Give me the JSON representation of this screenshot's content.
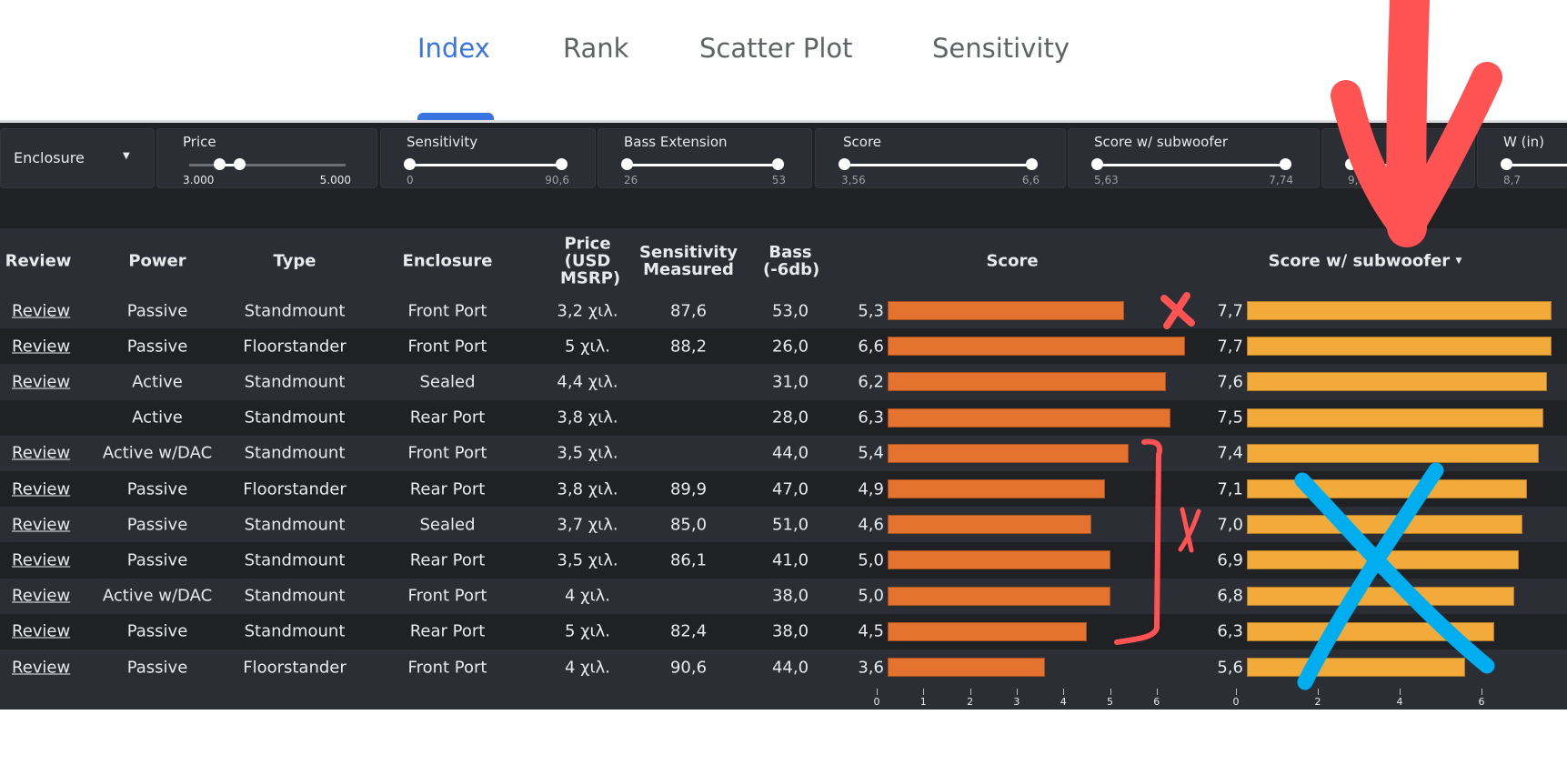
{
  "tabs": [
    {
      "label": "Index",
      "active": true
    },
    {
      "label": "Rank"
    },
    {
      "label": "Scatter Plot"
    },
    {
      "label": "Sensitivity"
    }
  ],
  "filters": {
    "enclosure": {
      "label": "Enclosure",
      "icon": "caret-down-icon"
    },
    "price": {
      "label": "Price",
      "min": "3.000",
      "max": "5.000",
      "selected_low": 3200,
      "selected_high": 3500,
      "range": [
        2000,
        5000
      ]
    },
    "sensitivity": {
      "label": "Sensitivity",
      "min": "0",
      "max": "90,6"
    },
    "bass": {
      "label": "Bass Extension",
      "min": "26",
      "max": "53"
    },
    "score": {
      "label": "Score",
      "min": "3,56",
      "max": "6,6"
    },
    "score_sub": {
      "label": "Score w/ subwoofer",
      "min": "5,63",
      "max": "7,74"
    },
    "hidden": {
      "min": "9,96"
    },
    "w": {
      "label": "W (in)",
      "min": "8,7"
    }
  },
  "table": {
    "headers": {
      "review": "Review",
      "power": "Power",
      "type": "Type",
      "enclosure": "Enclosure",
      "price": "Price (USD MSRP)",
      "sensitivity": "Sensitivity Measured",
      "bass": "Bass (-6db)",
      "score": "Score",
      "score_sub": "Score w/ subwoofer",
      "sort_icon": "caret-down-icon"
    },
    "rows": [
      {
        "review": "Review",
        "power": "Passive",
        "type": "Standmount",
        "enclosure": "Front Port",
        "price": "3,2 χιλ.",
        "sensitivity": "87,6",
        "bass": "53,0",
        "score": "5,3",
        "score_sub": "7,7"
      },
      {
        "review": "Review",
        "power": "Passive",
        "type": "Floorstander",
        "enclosure": "Front Port",
        "price": "5 χιλ.",
        "sensitivity": "88,2",
        "bass": "26,0",
        "score": "6,6",
        "score_sub": "7,7"
      },
      {
        "review": "Review",
        "power": "Active",
        "type": "Standmount",
        "enclosure": "Sealed",
        "price": "4,4 χιλ.",
        "sensitivity": "",
        "bass": "31,0",
        "score": "6,2",
        "score_sub": "7,6"
      },
      {
        "review": "",
        "power": "Active",
        "type": "Standmount",
        "enclosure": "Rear Port",
        "price": "3,8 χιλ.",
        "sensitivity": "",
        "bass": "28,0",
        "score": "6,3",
        "score_sub": "7,5"
      },
      {
        "review": "Review",
        "power": "Active w/DAC",
        "type": "Standmount",
        "enclosure": "Front Port",
        "price": "3,5 χιλ.",
        "sensitivity": "",
        "bass": "44,0",
        "score": "5,4",
        "score_sub": "7,4"
      },
      {
        "review": "Review",
        "power": "Passive",
        "type": "Floorstander",
        "enclosure": "Rear Port",
        "price": "3,8 χιλ.",
        "sensitivity": "89,9",
        "bass": "47,0",
        "score": "4,9",
        "score_sub": "7,1"
      },
      {
        "review": "Review",
        "power": "Passive",
        "type": "Standmount",
        "enclosure": "Sealed",
        "price": "3,7 χιλ.",
        "sensitivity": "85,0",
        "bass": "51,0",
        "score": "4,6",
        "score_sub": "7,0"
      },
      {
        "review": "Review",
        "power": "Passive",
        "type": "Standmount",
        "enclosure": "Rear Port",
        "price": "3,5 χιλ.",
        "sensitivity": "86,1",
        "bass": "41,0",
        "score": "5,0",
        "score_sub": "6,9"
      },
      {
        "review": "Review",
        "power": "Active w/DAC",
        "type": "Standmount",
        "enclosure": "Front Port",
        "price": "4 χιλ.",
        "sensitivity": "",
        "bass": "38,0",
        "score": "5,0",
        "score_sub": "6,8"
      },
      {
        "review": "Review",
        "power": "Passive",
        "type": "Standmount",
        "enclosure": "Rear Port",
        "price": "5 χιλ.",
        "sensitivity": "82,4",
        "bass": "38,0",
        "score": "4,5",
        "score_sub": "6,3"
      },
      {
        "review": "Review",
        "power": "Passive",
        "type": "Floorstander",
        "enclosure": "Front Port",
        "price": "4 χιλ.",
        "sensitivity": "90,6",
        "bass": "44,0",
        "score": "3,6",
        "score_sub": "5,6"
      }
    ],
    "score_axis_ticks": [
      "0",
      "1",
      "2",
      "3",
      "4",
      "5",
      "6"
    ],
    "score_sub_axis_ticks": [
      "0",
      "2",
      "4",
      "6"
    ]
  },
  "colors": {
    "accent": "#3a74e0",
    "score_bar": "#e3732f",
    "score_sub_bar": "#f2aa3a",
    "annotation_red": "#ff5252",
    "annotation_blue": "#00aef0"
  }
}
